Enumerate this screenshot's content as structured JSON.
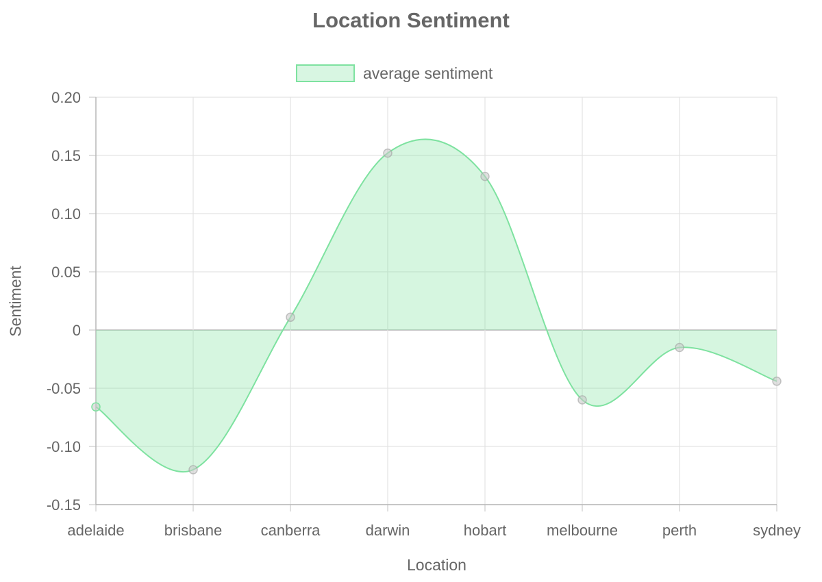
{
  "chart_data": {
    "type": "area",
    "title": "Location Sentiment",
    "xlabel": "Location",
    "ylabel": "Sentiment",
    "categories": [
      "adelaide",
      "brisbane",
      "canberra",
      "darwin",
      "hobart",
      "melbourne",
      "perth",
      "sydney"
    ],
    "series": [
      {
        "name": "average sentiment",
        "values": [
          -0.066,
          -0.12,
          0.011,
          0.152,
          0.132,
          -0.06,
          -0.015,
          -0.044
        ],
        "color": "#7ee2a0"
      }
    ],
    "ylim": [
      -0.15,
      0.2
    ],
    "yticks": [
      "0.20",
      "0.15",
      "0.10",
      "0.05",
      "0",
      "-0.05",
      "-0.10",
      "-0.15"
    ],
    "grid": true,
    "legend_position": "top-center",
    "interpolation": "smooth"
  }
}
